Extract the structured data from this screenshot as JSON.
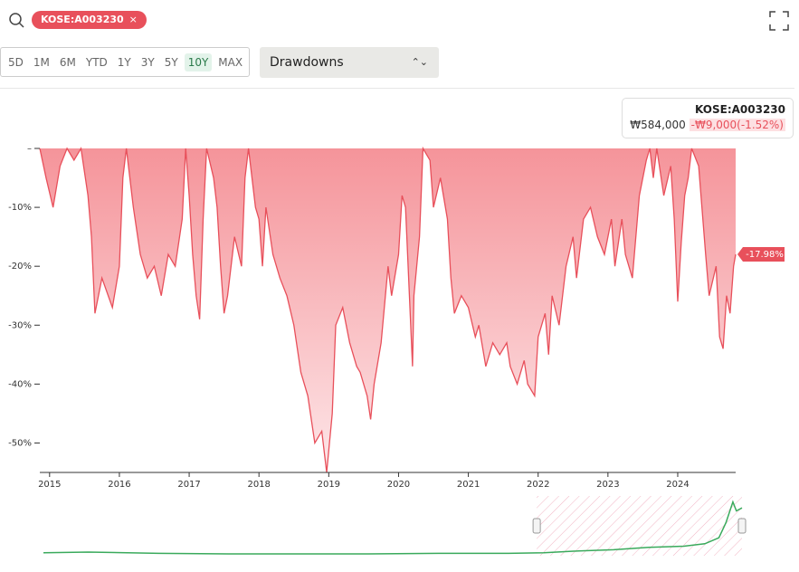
{
  "toolbar": {
    "ticker": "KOSE:A003230",
    "close": "×",
    "ranges": [
      "5D",
      "1M",
      "6M",
      "YTD",
      "1Y",
      "3Y",
      "5Y",
      "10Y",
      "MAX"
    ],
    "active_range": "10Y",
    "view": "Drawdowns"
  },
  "tooltip": {
    "ticker": "KOSE:A003230",
    "price": "₩584,000",
    "change": "-₩9,000(-1.52%)"
  },
  "chart_data": {
    "type": "area",
    "color": "#e8505b",
    "x": [
      2014.86,
      2014.95,
      2015.05,
      2015.15,
      2015.25,
      2015.35,
      2015.45,
      2015.55,
      2015.6,
      2015.65,
      2015.75,
      2015.9,
      2016.0,
      2016.05,
      2016.1,
      2016.2,
      2016.3,
      2016.4,
      2016.5,
      2016.6,
      2016.7,
      2016.8,
      2016.9,
      2016.95,
      2017.0,
      2017.05,
      2017.1,
      2017.15,
      2017.2,
      2017.25,
      2017.35,
      2017.4,
      2017.45,
      2017.5,
      2017.55,
      2017.65,
      2017.75,
      2017.8,
      2017.85,
      2017.95,
      2018.0,
      2018.05,
      2018.1,
      2018.2,
      2018.3,
      2018.4,
      2018.5,
      2018.6,
      2018.7,
      2018.8,
      2018.9,
      2018.97,
      2019.05,
      2019.1,
      2019.2,
      2019.3,
      2019.4,
      2019.45,
      2019.55,
      2019.6,
      2019.65,
      2019.75,
      2019.85,
      2019.9,
      2020.0,
      2020.05,
      2020.1,
      2020.2,
      2020.22,
      2020.3,
      2020.35,
      2020.45,
      2020.5,
      2020.6,
      2020.7,
      2020.75,
      2020.8,
      2020.9,
      2021.0,
      2021.1,
      2021.15,
      2021.25,
      2021.35,
      2021.45,
      2021.55,
      2021.6,
      2021.7,
      2021.8,
      2021.85,
      2021.95,
      2022.0,
      2022.1,
      2022.15,
      2022.2,
      2022.3,
      2022.4,
      2022.5,
      2022.55,
      2022.65,
      2022.75,
      2022.85,
      2022.95,
      2023.05,
      2023.1,
      2023.2,
      2023.25,
      2023.35,
      2023.45,
      2023.55,
      2023.6,
      2023.65,
      2023.7,
      2023.8,
      2023.9,
      2023.95,
      2024.0,
      2024.05,
      2024.1,
      2024.15,
      2024.2,
      2024.3,
      2024.4,
      2024.45,
      2024.55,
      2024.6,
      2024.65,
      2024.7,
      2024.75,
      2024.8,
      2024.83
    ],
    "values": [
      0,
      -5,
      -10,
      -3,
      0,
      -2,
      0,
      -8,
      -15,
      -28,
      -22,
      -27,
      -20,
      -5,
      0,
      -10,
      -18,
      -22,
      -20,
      -25,
      -18,
      -20,
      -12,
      0,
      -8,
      -18,
      -25,
      -29,
      -12,
      0,
      -5,
      -10,
      -20,
      -28,
      -25,
      -15,
      -20,
      -5,
      0,
      -10,
      -12,
      -20,
      -10,
      -18,
      -22,
      -25,
      -30,
      -38,
      -42,
      -50,
      -48,
      -55,
      -45,
      -30,
      -27,
      -33,
      -37,
      -38,
      -42,
      -46,
      -40,
      -33,
      -20,
      -25,
      -18,
      -8,
      -10,
      -37,
      -25,
      -15,
      0,
      -2,
      -10,
      -5,
      -12,
      -22,
      -28,
      -25,
      -27,
      -32,
      -30,
      -37,
      -33,
      -35,
      -33,
      -37,
      -40,
      -36,
      -40,
      -42,
      -32,
      -28,
      -35,
      -25,
      -30,
      -20,
      -15,
      -22,
      -12,
      -10,
      -15,
      -18,
      -12,
      -20,
      -12,
      -18,
      -22,
      -8,
      -2,
      0,
      -5,
      0,
      -8,
      -3,
      -12,
      -26,
      -16,
      -8,
      -5,
      0,
      -3,
      -18,
      -25,
      -20,
      -32,
      -34,
      -25,
      -28,
      -20,
      -17.98
    ],
    "current": {
      "value": -17.98,
      "label": "-17.98%"
    },
    "xlim": [
      2014.86,
      2024.83
    ],
    "xticks": [
      2015,
      2016,
      2017,
      2018,
      2019,
      2020,
      2021,
      2022,
      2023,
      2024
    ],
    "ylim": [
      -55,
      0
    ],
    "yticks": [
      {
        "value": 0,
        "label": "–"
      },
      {
        "value": -10,
        "label": "-10%"
      },
      {
        "value": -20,
        "label": "-20%"
      },
      {
        "value": -30,
        "label": "-30%"
      },
      {
        "value": -40,
        "label": "-40%"
      },
      {
        "value": -50,
        "label": "-50%"
      }
    ],
    "navigator": {
      "color": "#3aaa5c",
      "x": [
        2014.86,
        2015.5,
        2016.5,
        2017.5,
        2018.5,
        2019.5,
        2020.5,
        2021.5,
        2022.0,
        2022.5,
        2023.0,
        2023.5,
        2024.0,
        2024.3,
        2024.5,
        2024.6,
        2024.7,
        2024.75,
        2024.83
      ],
      "values": [
        5,
        6,
        4,
        3,
        3,
        3,
        4,
        4,
        5,
        8,
        10,
        14,
        16,
        20,
        30,
        55,
        90,
        75,
        80
      ],
      "ylim": [
        0,
        100
      ],
      "selection": [
        2021.9,
        2024.83
      ]
    }
  }
}
